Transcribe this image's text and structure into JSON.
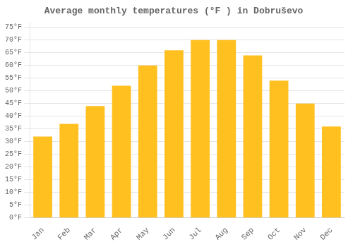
{
  "chart_data": {
    "type": "bar",
    "title": "Average monthly temperatures (°F ) in Dobruševo",
    "categories": [
      "Jan",
      "Feb",
      "Mar",
      "Apr",
      "May",
      "Jun",
      "Jul",
      "Aug",
      "Sep",
      "Oct",
      "Nov",
      "Dec"
    ],
    "values": [
      32,
      37,
      44,
      52,
      60,
      66,
      70,
      70,
      64,
      54,
      45,
      36
    ],
    "color": "#FFC020",
    "ylim": [
      0,
      77
    ],
    "yticks": [
      {
        "value": 0,
        "label": "0°F"
      },
      {
        "value": 5,
        "label": "5°F"
      },
      {
        "value": 10,
        "label": "10°F"
      },
      {
        "value": 15,
        "label": "15°F"
      },
      {
        "value": 20,
        "label": "20°F"
      },
      {
        "value": 25,
        "label": "25°F"
      },
      {
        "value": 30,
        "label": "30°F"
      },
      {
        "value": 35,
        "label": "35°F"
      },
      {
        "value": 40,
        "label": "40°F"
      },
      {
        "value": 45,
        "label": "45°F"
      },
      {
        "value": 50,
        "label": "50°F"
      },
      {
        "value": 55,
        "label": "55°F"
      },
      {
        "value": 60,
        "label": "60°F"
      },
      {
        "value": 65,
        "label": "65°F"
      },
      {
        "value": 70,
        "label": "70°F"
      },
      {
        "value": 75,
        "label": "75°F"
      }
    ],
    "grid": true
  }
}
